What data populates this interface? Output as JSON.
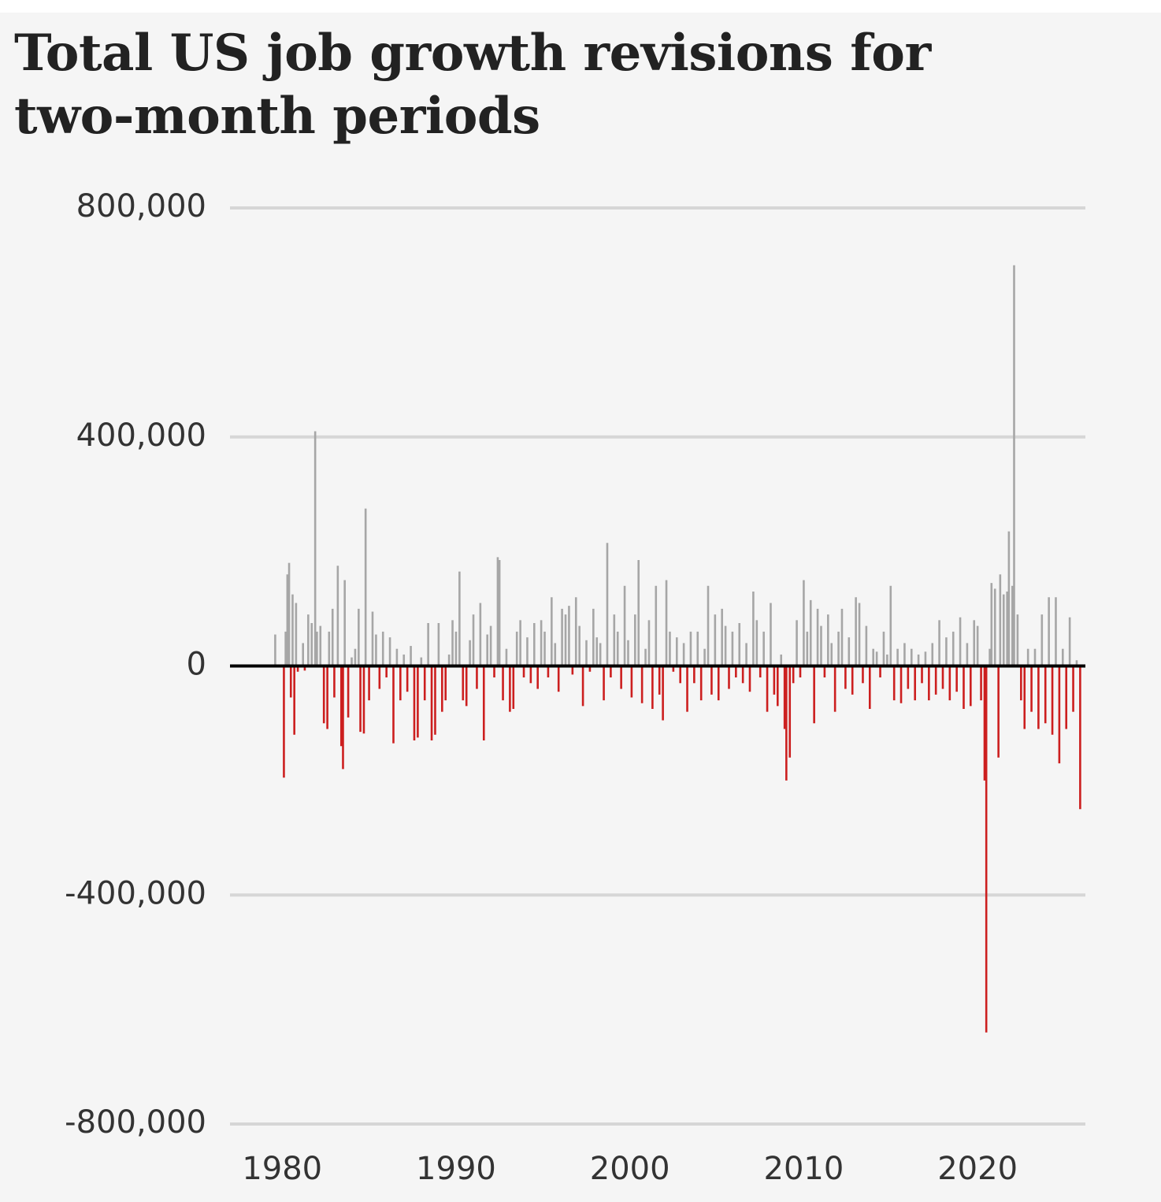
{
  "colors": {
    "positive": "#a6a6a6",
    "negative": "#cc1f1f",
    "gridline": "#d6d6d6",
    "zero_line": "#000000",
    "background": "#f5f5f5",
    "text": "#222222"
  },
  "chart_data": {
    "type": "bar",
    "title": "Total US job growth revisions for two-month periods",
    "xlabel": "",
    "ylabel": "",
    "ylim": [
      -800000,
      800000
    ],
    "xlim": [
      1977,
      2026.2
    ],
    "grid": true,
    "yticks": [
      {
        "value": 800000,
        "label": "800,000"
      },
      {
        "value": 400000,
        "label": "400,000"
      },
      {
        "value": 0,
        "label": "0"
      },
      {
        "value": -400000,
        "label": "-400,000"
      },
      {
        "value": -800000,
        "label": "-800,000"
      }
    ],
    "xticks": [
      {
        "value": 1980,
        "label": "1980"
      },
      {
        "value": 1990,
        "label": "1990"
      },
      {
        "value": 2000,
        "label": "2000"
      },
      {
        "value": 2010,
        "label": "2010"
      },
      {
        "value": 2020,
        "label": "2020"
      }
    ],
    "series": [
      {
        "name": "Revisions",
        "points": [
          {
            "x": 1979.6,
            "y": 55000
          },
          {
            "x": 1980.1,
            "y": -195000
          },
          {
            "x": 1980.2,
            "y": 60000
          },
          {
            "x": 1980.3,
            "y": 160000
          },
          {
            "x": 1980.4,
            "y": 180000
          },
          {
            "x": 1980.5,
            "y": -55000
          },
          {
            "x": 1980.6,
            "y": 125000
          },
          {
            "x": 1980.7,
            "y": -120000
          },
          {
            "x": 1980.8,
            "y": 110000
          },
          {
            "x": 1980.9,
            "y": -10000
          },
          {
            "x": 1981.2,
            "y": 40000
          },
          {
            "x": 1981.3,
            "y": -8000
          },
          {
            "x": 1981.5,
            "y": 90000
          },
          {
            "x": 1981.7,
            "y": 75000
          },
          {
            "x": 1981.9,
            "y": 410000
          },
          {
            "x": 1982.0,
            "y": 60000
          },
          {
            "x": 1982.2,
            "y": 70000
          },
          {
            "x": 1982.4,
            "y": -100000
          },
          {
            "x": 1982.6,
            "y": -110000
          },
          {
            "x": 1982.7,
            "y": 60000
          },
          {
            "x": 1982.9,
            "y": 100000
          },
          {
            "x": 1983.0,
            "y": -55000
          },
          {
            "x": 1983.2,
            "y": 175000
          },
          {
            "x": 1983.4,
            "y": -140000
          },
          {
            "x": 1983.5,
            "y": -180000
          },
          {
            "x": 1983.6,
            "y": 150000
          },
          {
            "x": 1983.8,
            "y": -90000
          },
          {
            "x": 1984.0,
            "y": 15000
          },
          {
            "x": 1984.2,
            "y": 30000
          },
          {
            "x": 1984.4,
            "y": 100000
          },
          {
            "x": 1984.5,
            "y": -115000
          },
          {
            "x": 1984.7,
            "y": -118000
          },
          {
            "x": 1984.8,
            "y": 275000
          },
          {
            "x": 1985.0,
            "y": -60000
          },
          {
            "x": 1985.2,
            "y": 95000
          },
          {
            "x": 1985.4,
            "y": 55000
          },
          {
            "x": 1985.6,
            "y": -40000
          },
          {
            "x": 1985.8,
            "y": 60000
          },
          {
            "x": 1986.0,
            "y": -20000
          },
          {
            "x": 1986.2,
            "y": 50000
          },
          {
            "x": 1986.4,
            "y": -135000
          },
          {
            "x": 1986.6,
            "y": 30000
          },
          {
            "x": 1986.8,
            "y": -60000
          },
          {
            "x": 1987.0,
            "y": 20000
          },
          {
            "x": 1987.2,
            "y": -45000
          },
          {
            "x": 1987.4,
            "y": 35000
          },
          {
            "x": 1987.6,
            "y": -130000
          },
          {
            "x": 1987.8,
            "y": -125000
          },
          {
            "x": 1988.0,
            "y": 15000
          },
          {
            "x": 1988.2,
            "y": -60000
          },
          {
            "x": 1988.4,
            "y": 75000
          },
          {
            "x": 1988.6,
            "y": -130000
          },
          {
            "x": 1988.8,
            "y": -120000
          },
          {
            "x": 1989.0,
            "y": 75000
          },
          {
            "x": 1989.2,
            "y": -80000
          },
          {
            "x": 1989.4,
            "y": -60000
          },
          {
            "x": 1989.6,
            "y": 20000
          },
          {
            "x": 1989.8,
            "y": 80000
          },
          {
            "x": 1990.0,
            "y": 60000
          },
          {
            "x": 1990.2,
            "y": 165000
          },
          {
            "x": 1990.4,
            "y": -60000
          },
          {
            "x": 1990.6,
            "y": -70000
          },
          {
            "x": 1990.8,
            "y": 45000
          },
          {
            "x": 1991.0,
            "y": 90000
          },
          {
            "x": 1991.2,
            "y": -40000
          },
          {
            "x": 1991.4,
            "y": 110000
          },
          {
            "x": 1991.6,
            "y": -130000
          },
          {
            "x": 1991.8,
            "y": 55000
          },
          {
            "x": 1992.0,
            "y": 70000
          },
          {
            "x": 1992.2,
            "y": -20000
          },
          {
            "x": 1992.4,
            "y": 190000
          },
          {
            "x": 1992.5,
            "y": 185000
          },
          {
            "x": 1992.7,
            "y": -60000
          },
          {
            "x": 1992.9,
            "y": 30000
          },
          {
            "x": 1993.1,
            "y": -80000
          },
          {
            "x": 1993.3,
            "y": -75000
          },
          {
            "x": 1993.5,
            "y": 60000
          },
          {
            "x": 1993.7,
            "y": 80000
          },
          {
            "x": 1993.9,
            "y": -20000
          },
          {
            "x": 1994.1,
            "y": 50000
          },
          {
            "x": 1994.3,
            "y": -30000
          },
          {
            "x": 1994.5,
            "y": 75000
          },
          {
            "x": 1994.7,
            "y": -40000
          },
          {
            "x": 1994.9,
            "y": 80000
          },
          {
            "x": 1995.1,
            "y": 60000
          },
          {
            "x": 1995.3,
            "y": -20000
          },
          {
            "x": 1995.5,
            "y": 120000
          },
          {
            "x": 1995.7,
            "y": 40000
          },
          {
            "x": 1995.9,
            "y": -45000
          },
          {
            "x": 1996.1,
            "y": 100000
          },
          {
            "x": 1996.3,
            "y": 90000
          },
          {
            "x": 1996.5,
            "y": 105000
          },
          {
            "x": 1996.7,
            "y": -15000
          },
          {
            "x": 1996.9,
            "y": 120000
          },
          {
            "x": 1997.1,
            "y": 70000
          },
          {
            "x": 1997.3,
            "y": -70000
          },
          {
            "x": 1997.5,
            "y": 45000
          },
          {
            "x": 1997.7,
            "y": -10000
          },
          {
            "x": 1997.9,
            "y": 100000
          },
          {
            "x": 1998.1,
            "y": 50000
          },
          {
            "x": 1998.3,
            "y": 40000
          },
          {
            "x": 1998.5,
            "y": -60000
          },
          {
            "x": 1998.7,
            "y": 215000
          },
          {
            "x": 1998.9,
            "y": -20000
          },
          {
            "x": 1999.1,
            "y": 90000
          },
          {
            "x": 1999.3,
            "y": 60000
          },
          {
            "x": 1999.5,
            "y": -40000
          },
          {
            "x": 1999.7,
            "y": 140000
          },
          {
            "x": 1999.9,
            "y": 45000
          },
          {
            "x": 2000.1,
            "y": -55000
          },
          {
            "x": 2000.3,
            "y": 90000
          },
          {
            "x": 2000.5,
            "y": 185000
          },
          {
            "x": 2000.7,
            "y": -65000
          },
          {
            "x": 2000.9,
            "y": 30000
          },
          {
            "x": 2001.1,
            "y": 80000
          },
          {
            "x": 2001.3,
            "y": -75000
          },
          {
            "x": 2001.5,
            "y": 140000
          },
          {
            "x": 2001.7,
            "y": -50000
          },
          {
            "x": 2001.9,
            "y": -95000
          },
          {
            "x": 2002.1,
            "y": 150000
          },
          {
            "x": 2002.3,
            "y": 60000
          },
          {
            "x": 2002.5,
            "y": -10000
          },
          {
            "x": 2002.7,
            "y": 50000
          },
          {
            "x": 2002.9,
            "y": -30000
          },
          {
            "x": 2003.1,
            "y": 40000
          },
          {
            "x": 2003.3,
            "y": -80000
          },
          {
            "x": 2003.5,
            "y": 60000
          },
          {
            "x": 2003.7,
            "y": -30000
          },
          {
            "x": 2003.9,
            "y": 60000
          },
          {
            "x": 2004.1,
            "y": -60000
          },
          {
            "x": 2004.3,
            "y": 30000
          },
          {
            "x": 2004.5,
            "y": 140000
          },
          {
            "x": 2004.7,
            "y": -50000
          },
          {
            "x": 2004.9,
            "y": 90000
          },
          {
            "x": 2005.1,
            "y": -60000
          },
          {
            "x": 2005.3,
            "y": 100000
          },
          {
            "x": 2005.5,
            "y": 70000
          },
          {
            "x": 2005.7,
            "y": -40000
          },
          {
            "x": 2005.9,
            "y": 60000
          },
          {
            "x": 2006.1,
            "y": -20000
          },
          {
            "x": 2006.3,
            "y": 75000
          },
          {
            "x": 2006.5,
            "y": -30000
          },
          {
            "x": 2006.7,
            "y": 40000
          },
          {
            "x": 2006.9,
            "y": -45000
          },
          {
            "x": 2007.1,
            "y": 130000
          },
          {
            "x": 2007.3,
            "y": 80000
          },
          {
            "x": 2007.5,
            "y": -20000
          },
          {
            "x": 2007.7,
            "y": 60000
          },
          {
            "x": 2007.9,
            "y": -80000
          },
          {
            "x": 2008.1,
            "y": 110000
          },
          {
            "x": 2008.3,
            "y": -50000
          },
          {
            "x": 2008.5,
            "y": -70000
          },
          {
            "x": 2008.7,
            "y": 20000
          },
          {
            "x": 2008.9,
            "y": -110000
          },
          {
            "x": 2009.0,
            "y": -200000
          },
          {
            "x": 2009.2,
            "y": -160000
          },
          {
            "x": 2009.4,
            "y": -30000
          },
          {
            "x": 2009.6,
            "y": 80000
          },
          {
            "x": 2009.8,
            "y": -20000
          },
          {
            "x": 2010.0,
            "y": 150000
          },
          {
            "x": 2010.2,
            "y": 60000
          },
          {
            "x": 2010.4,
            "y": 115000
          },
          {
            "x": 2010.6,
            "y": -100000
          },
          {
            "x": 2010.8,
            "y": 100000
          },
          {
            "x": 2011.0,
            "y": 70000
          },
          {
            "x": 2011.2,
            "y": -20000
          },
          {
            "x": 2011.4,
            "y": 90000
          },
          {
            "x": 2011.6,
            "y": 40000
          },
          {
            "x": 2011.8,
            "y": -80000
          },
          {
            "x": 2012.0,
            "y": 60000
          },
          {
            "x": 2012.2,
            "y": 100000
          },
          {
            "x": 2012.4,
            "y": -40000
          },
          {
            "x": 2012.6,
            "y": 50000
          },
          {
            "x": 2012.8,
            "y": -50000
          },
          {
            "x": 2013.0,
            "y": 120000
          },
          {
            "x": 2013.2,
            "y": 110000
          },
          {
            "x": 2013.4,
            "y": -30000
          },
          {
            "x": 2013.6,
            "y": 70000
          },
          {
            "x": 2013.8,
            "y": -75000
          },
          {
            "x": 2014.0,
            "y": 30000
          },
          {
            "x": 2014.2,
            "y": 25000
          },
          {
            "x": 2014.4,
            "y": -20000
          },
          {
            "x": 2014.6,
            "y": 60000
          },
          {
            "x": 2014.8,
            "y": 20000
          },
          {
            "x": 2015.0,
            "y": 140000
          },
          {
            "x": 2015.2,
            "y": -60000
          },
          {
            "x": 2015.4,
            "y": 30000
          },
          {
            "x": 2015.6,
            "y": -65000
          },
          {
            "x": 2015.8,
            "y": 40000
          },
          {
            "x": 2016.0,
            "y": -40000
          },
          {
            "x": 2016.2,
            "y": 30000
          },
          {
            "x": 2016.4,
            "y": -60000
          },
          {
            "x": 2016.6,
            "y": 20000
          },
          {
            "x": 2016.8,
            "y": -30000
          },
          {
            "x": 2017.0,
            "y": 25000
          },
          {
            "x": 2017.2,
            "y": -60000
          },
          {
            "x": 2017.4,
            "y": 40000
          },
          {
            "x": 2017.6,
            "y": -50000
          },
          {
            "x": 2017.8,
            "y": 80000
          },
          {
            "x": 2018.0,
            "y": -40000
          },
          {
            "x": 2018.2,
            "y": 50000
          },
          {
            "x": 2018.4,
            "y": -60000
          },
          {
            "x": 2018.6,
            "y": 60000
          },
          {
            "x": 2018.8,
            "y": -45000
          },
          {
            "x": 2019.0,
            "y": 85000
          },
          {
            "x": 2019.2,
            "y": -75000
          },
          {
            "x": 2019.4,
            "y": 40000
          },
          {
            "x": 2019.6,
            "y": -70000
          },
          {
            "x": 2019.8,
            "y": 80000
          },
          {
            "x": 2020.0,
            "y": 70000
          },
          {
            "x": 2020.2,
            "y": -60000
          },
          {
            "x": 2020.4,
            "y": -200000
          },
          {
            "x": 2020.5,
            "y": -640000
          },
          {
            "x": 2020.7,
            "y": 30000
          },
          {
            "x": 2020.8,
            "y": 145000
          },
          {
            "x": 2021.0,
            "y": 135000
          },
          {
            "x": 2021.2,
            "y": -160000
          },
          {
            "x": 2021.3,
            "y": 160000
          },
          {
            "x": 2021.5,
            "y": 125000
          },
          {
            "x": 2021.7,
            "y": 130000
          },
          {
            "x": 2021.8,
            "y": 235000
          },
          {
            "x": 2022.0,
            "y": 140000
          },
          {
            "x": 2022.1,
            "y": 700000
          },
          {
            "x": 2022.3,
            "y": 90000
          },
          {
            "x": 2022.5,
            "y": -60000
          },
          {
            "x": 2022.7,
            "y": -110000
          },
          {
            "x": 2022.9,
            "y": 30000
          },
          {
            "x": 2023.1,
            "y": -80000
          },
          {
            "x": 2023.3,
            "y": 30000
          },
          {
            "x": 2023.5,
            "y": -110000
          },
          {
            "x": 2023.7,
            "y": 90000
          },
          {
            "x": 2023.9,
            "y": -100000
          },
          {
            "x": 2024.1,
            "y": 120000
          },
          {
            "x": 2024.3,
            "y": -120000
          },
          {
            "x": 2024.5,
            "y": 120000
          },
          {
            "x": 2024.7,
            "y": -170000
          },
          {
            "x": 2024.9,
            "y": 30000
          },
          {
            "x": 2025.1,
            "y": -110000
          },
          {
            "x": 2025.3,
            "y": 85000
          },
          {
            "x": 2025.5,
            "y": -80000
          },
          {
            "x": 2025.7,
            "y": 10000
          },
          {
            "x": 2025.9,
            "y": -250000
          }
        ]
      }
    ]
  }
}
